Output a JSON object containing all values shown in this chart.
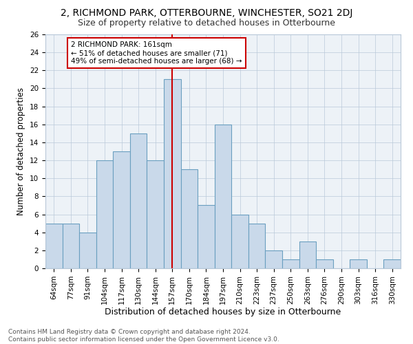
{
  "title1": "2, RICHMOND PARK, OTTERBOURNE, WINCHESTER, SO21 2DJ",
  "title2": "Size of property relative to detached houses in Otterbourne",
  "xlabel": "Distribution of detached houses by size in Otterbourne",
  "ylabel": "Number of detached properties",
  "categories": [
    "64sqm",
    "77sqm",
    "91sqm",
    "104sqm",
    "117sqm",
    "130sqm",
    "144sqm",
    "157sqm",
    "170sqm",
    "184sqm",
    "197sqm",
    "210sqm",
    "223sqm",
    "237sqm",
    "250sqm",
    "263sqm",
    "276sqm",
    "290sqm",
    "303sqm",
    "316sqm",
    "330sqm"
  ],
  "values": [
    5,
    5,
    4,
    12,
    13,
    15,
    12,
    21,
    11,
    7,
    16,
    6,
    5,
    2,
    1,
    3,
    1,
    0,
    1,
    0,
    1
  ],
  "bar_color": "#c9d9ea",
  "bar_edge_color": "#6a9fc0",
  "marker_index": 7,
  "marker_color": "#cc0000",
  "annotation_text": "2 RICHMOND PARK: 161sqm\n← 51% of detached houses are smaller (71)\n49% of semi-detached houses are larger (68) →",
  "annotation_box_color": "#ffffff",
  "annotation_box_edge": "#cc0000",
  "ylim": [
    0,
    26
  ],
  "yticks": [
    0,
    2,
    4,
    6,
    8,
    10,
    12,
    14,
    16,
    18,
    20,
    22,
    24,
    26
  ],
  "background_color": "#edf2f7",
  "footer": "Contains HM Land Registry data © Crown copyright and database right 2024.\nContains public sector information licensed under the Open Government Licence v3.0.",
  "title1_fontsize": 10,
  "title2_fontsize": 9,
  "xlabel_fontsize": 9,
  "ylabel_fontsize": 8.5,
  "tick_fontsize": 7.5,
  "footer_fontsize": 6.5
}
